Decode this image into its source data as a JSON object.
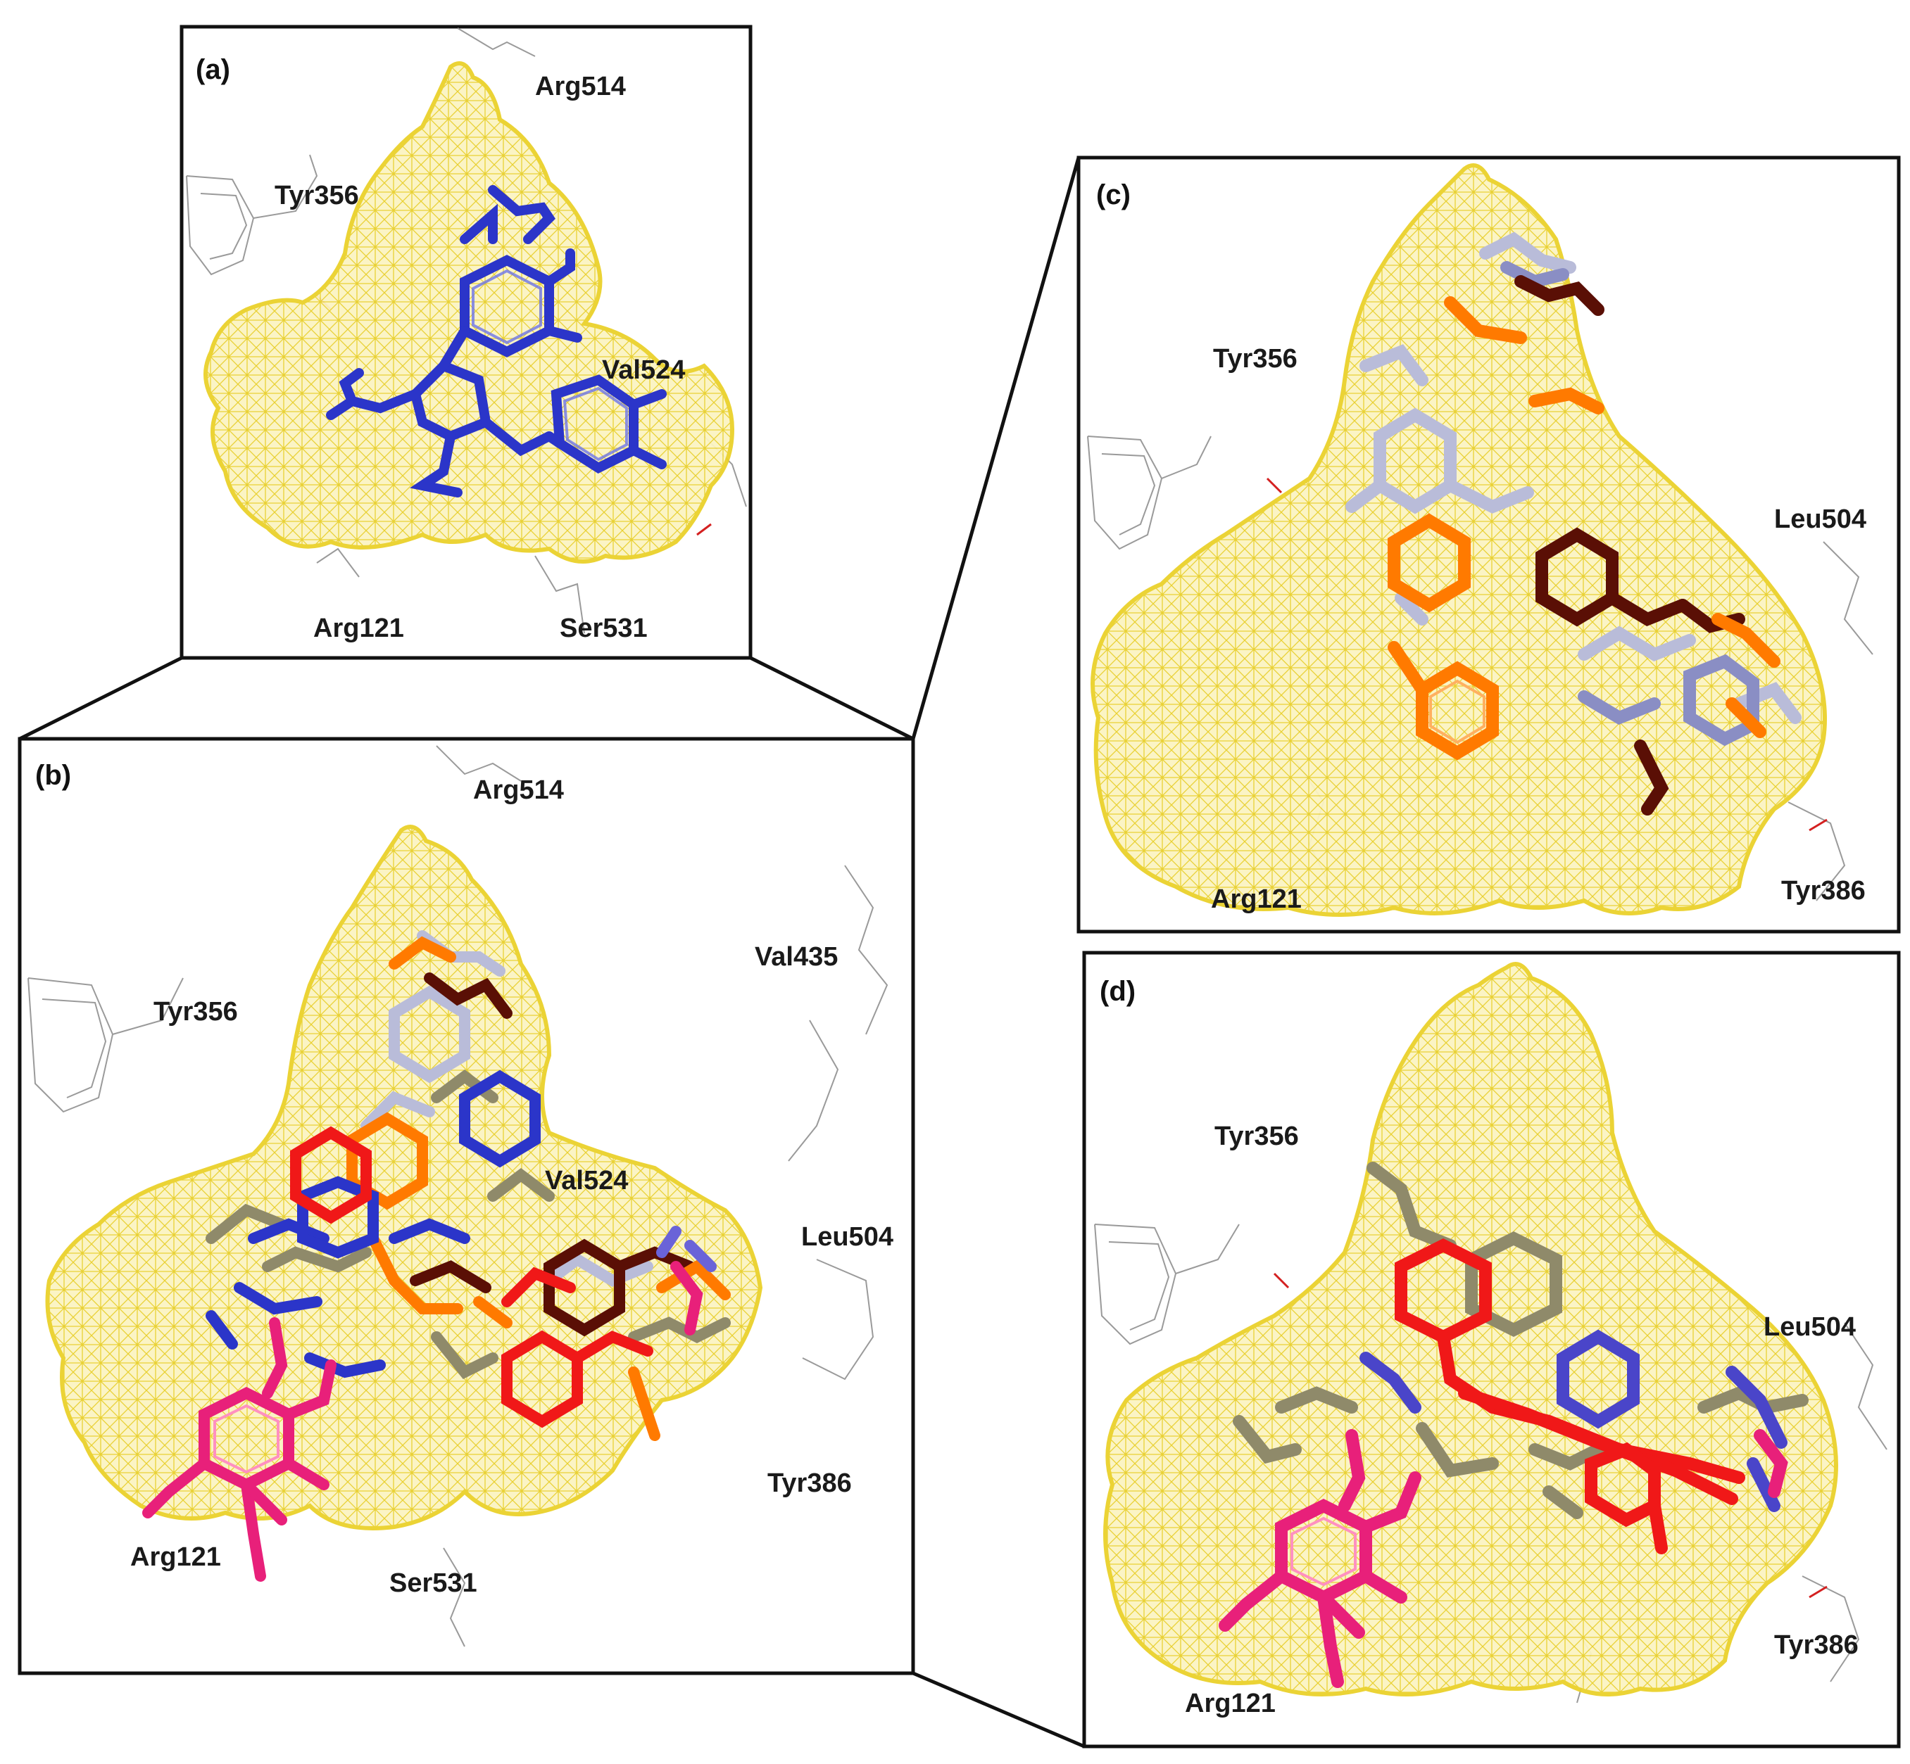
{
  "colors": {
    "surface": "#f2de3a",
    "residue_line": "#8c8c8c",
    "ligand_blue": "#2b35c9",
    "ligand_pink": "#e8207a",
    "ligand_orange": "#ff7a00",
    "ligand_maroon": "#5a0f05",
    "ligand_red": "#f01818",
    "ligand_olive": "#8f8a6a",
    "ligand_lightblue": "#a7acdc",
    "ligand_periwinkle": "#6a63d8",
    "frame": "#111111"
  },
  "panels": [
    {
      "key": "a",
      "label": "(a)",
      "residues": [
        "Arg514",
        "Tyr356",
        "Val524",
        "Arg121",
        "Ser531"
      ]
    },
    {
      "key": "b",
      "label": "(b)",
      "residues": [
        "Arg514",
        "Tyr356",
        "Val435",
        "Val524",
        "Leu504",
        "Tyr386",
        "Arg121",
        "Ser531"
      ]
    },
    {
      "key": "c",
      "label": "(c)",
      "residues": [
        "Tyr356",
        "Leu504",
        "Arg121",
        "Tyr386"
      ]
    },
    {
      "key": "d",
      "label": "(d)",
      "residues": [
        "Tyr356",
        "Leu504",
        "Tyr386",
        "Arg121"
      ]
    }
  ],
  "icons": [
    "binding-pocket-mesh-icon",
    "ligand-stick-icon",
    "residue-wireframe-icon"
  ]
}
